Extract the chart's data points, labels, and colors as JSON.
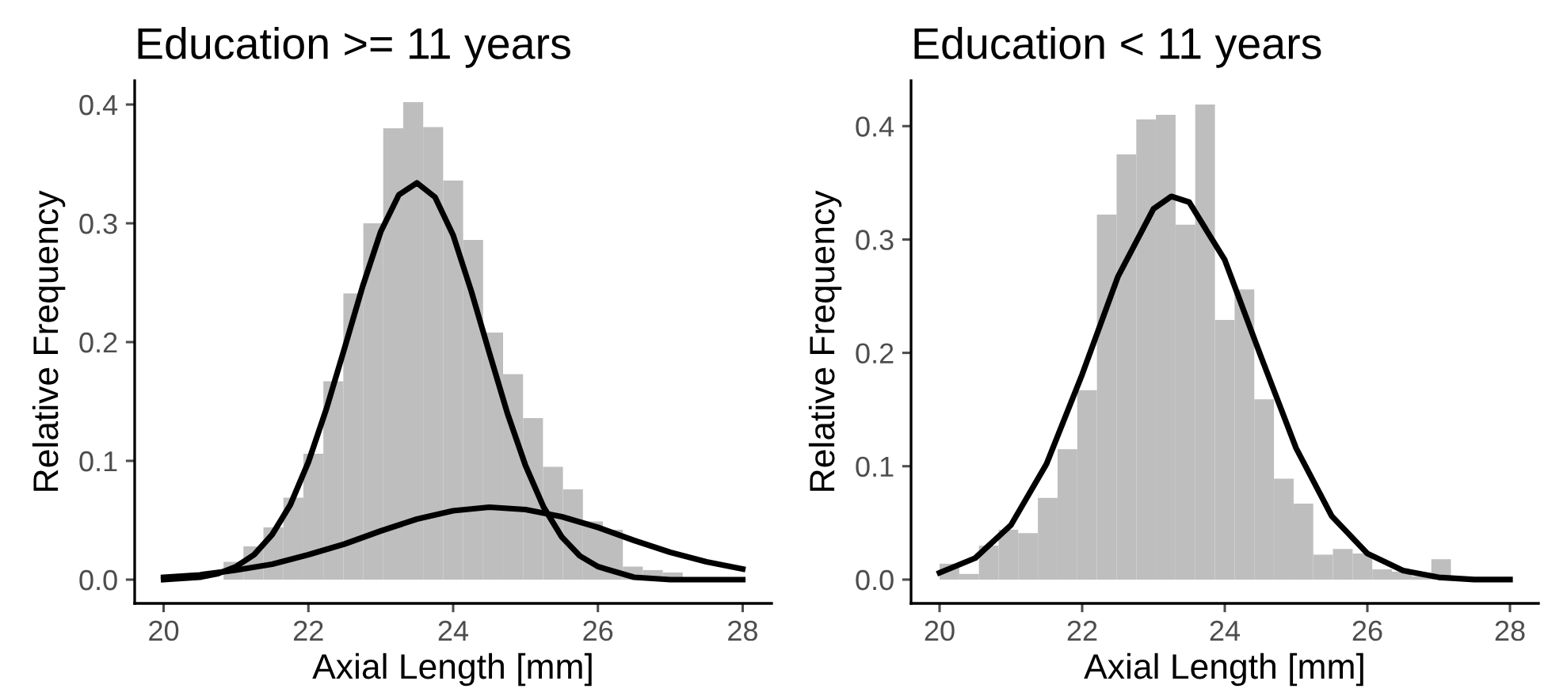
{
  "chart_data": [
    {
      "type": "histogram",
      "title": "Education >= 11 years",
      "xlabel": "Axial Length [mm]",
      "ylabel": "Relative Frequency",
      "bins": [
        20,
        20.276,
        20.552,
        20.828,
        21.103,
        21.379,
        21.655,
        21.931,
        22.207,
        22.483,
        22.759,
        23.034,
        23.31,
        23.586,
        23.862,
        24.138,
        24.414,
        24.69,
        24.966,
        25.241,
        25.517,
        25.793,
        26.069,
        26.345,
        26.621,
        26.897,
        27.172,
        27.448,
        27.724,
        28
      ],
      "series": [
        {
          "color": "#bebebe",
          "values": [
            0.002,
            null,
            null,
            0.015,
            0.028,
            0.044,
            0.069,
            0.106,
            0.167,
            0.241,
            0.3,
            0.38,
            0.402,
            0.381,
            0.336,
            0.286,
            0.208,
            0.173,
            0.136,
            0.095,
            0.076,
            0.049,
            0.042,
            0.011,
            0.008,
            0.006,
            null,
            null,
            0.002
          ]
        },
        {
          "type": "line",
          "color": "#000000",
          "x": [
            20,
            20.25,
            20.5,
            20.75,
            21,
            21.25,
            21.5,
            21.75,
            22,
            22.25,
            22.5,
            22.75,
            23,
            23.25,
            23.5,
            23.75,
            24,
            24.25,
            24.5,
            24.75,
            25,
            25.25,
            25.5,
            25.75,
            26,
            26.5,
            27,
            27.5,
            28
          ],
          "values": [
            0.0,
            0.001,
            0.002,
            0.005,
            0.011,
            0.021,
            0.038,
            0.063,
            0.099,
            0.144,
            0.195,
            0.247,
            0.293,
            0.324,
            0.334,
            0.322,
            0.29,
            0.243,
            0.191,
            0.14,
            0.096,
            0.061,
            0.036,
            0.02,
            0.011,
            0.002,
            0.0,
            0.0,
            0.0
          ]
        },
        {
          "type": "line",
          "color": "#000000",
          "x": [
            20,
            20.5,
            21,
            21.5,
            22,
            22.5,
            23,
            23.5,
            24,
            24.5,
            25,
            25.5,
            26,
            26.5,
            27,
            27.5,
            28
          ],
          "values": [
            0.002,
            0.004,
            0.008,
            0.013,
            0.021,
            0.03,
            0.041,
            0.051,
            0.058,
            0.061,
            0.059,
            0.053,
            0.044,
            0.033,
            0.023,
            0.015,
            0.009
          ]
        }
      ],
      "xlim": [
        19.6,
        28.4
      ],
      "xticks": [
        20,
        22,
        24,
        26,
        28
      ],
      "ylim": [
        -0.02,
        0.42
      ],
      "yticks": [
        {
          "value": 0,
          "label": "0.0"
        },
        {
          "value": 0.1,
          "label": "0.1"
        },
        {
          "value": 0.2,
          "label": "0.2"
        },
        {
          "value": 0.3,
          "label": "0.3"
        },
        {
          "value": 0.4,
          "label": "0.4"
        }
      ],
      "grid": false,
      "legend": false
    },
    {
      "type": "histogram",
      "title": "Education < 11 years",
      "xlabel": "Axial Length [mm]",
      "ylabel": "Relative Frequency",
      "bins": [
        20,
        20.276,
        20.552,
        20.828,
        21.103,
        21.379,
        21.655,
        21.931,
        22.207,
        22.483,
        22.759,
        23.034,
        23.31,
        23.586,
        23.862,
        24.138,
        24.414,
        24.69,
        24.966,
        25.241,
        25.517,
        25.793,
        26.069,
        26.345,
        26.621,
        26.897,
        27.172,
        27.448,
        27.724,
        28
      ],
      "series": [
        {
          "color": "#bebebe",
          "values": [
            0.014,
            0.005,
            0.03,
            0.044,
            0.041,
            0.072,
            0.115,
            0.167,
            0.322,
            0.375,
            0.406,
            0.41,
            0.313,
            0.419,
            0.229,
            0.256,
            0.159,
            0.089,
            0.067,
            0.022,
            0.027,
            0.023,
            0.009,
            0.007,
            0.003,
            0.018,
            null,
            0.001,
            0.0
          ]
        },
        {
          "type": "line",
          "color": "#000000",
          "x": [
            20,
            20.5,
            21,
            21.5,
            22,
            22.5,
            23,
            23.25,
            23.5,
            24,
            24.5,
            25,
            25.5,
            26,
            26.5,
            27,
            27.5,
            28
          ],
          "values": [
            0.006,
            0.019,
            0.048,
            0.102,
            0.181,
            0.267,
            0.327,
            0.338,
            0.333,
            0.282,
            0.198,
            0.116,
            0.056,
            0.023,
            0.008,
            0.002,
            0.0,
            0.0
          ]
        }
      ],
      "xlim": [
        19.6,
        28.4
      ],
      "xticks": [
        20,
        22,
        24,
        26,
        28
      ],
      "ylim": [
        -0.021,
        0.44
      ],
      "yticks": [
        {
          "value": 0,
          "label": "0.0"
        },
        {
          "value": 0.1,
          "label": "0.1"
        },
        {
          "value": 0.2,
          "label": "0.2"
        },
        {
          "value": 0.3,
          "label": "0.3"
        },
        {
          "value": 0.4,
          "label": "0.4"
        }
      ],
      "grid": false,
      "legend": false
    }
  ]
}
